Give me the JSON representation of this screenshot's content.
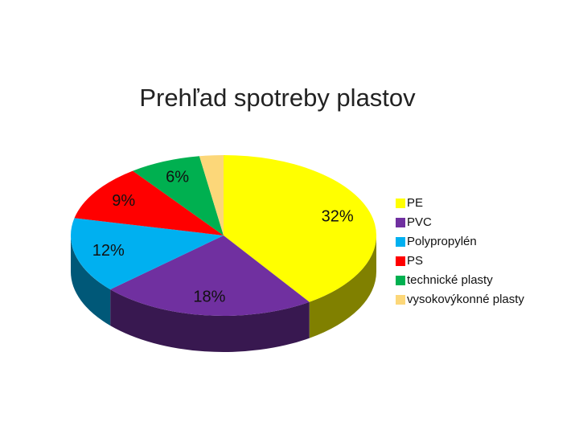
{
  "chart_data": {
    "type": "pie3d",
    "title": "Prehľad spotreby plastov",
    "categories": [
      "PE",
      "PVC",
      "Polypropylén",
      "PS",
      "technické plasty",
      "vysokovýkonné plasty"
    ],
    "values": [
      32,
      18,
      12,
      9,
      6,
      2
    ],
    "value_labels": [
      "32%",
      "18%",
      "12%",
      "9%",
      "6%",
      null
    ],
    "colors": [
      "#ffff00",
      "#7030a0",
      "#00b0f0",
      "#ff0000",
      "#00b050",
      "#fcd779"
    ],
    "legend": "right"
  }
}
